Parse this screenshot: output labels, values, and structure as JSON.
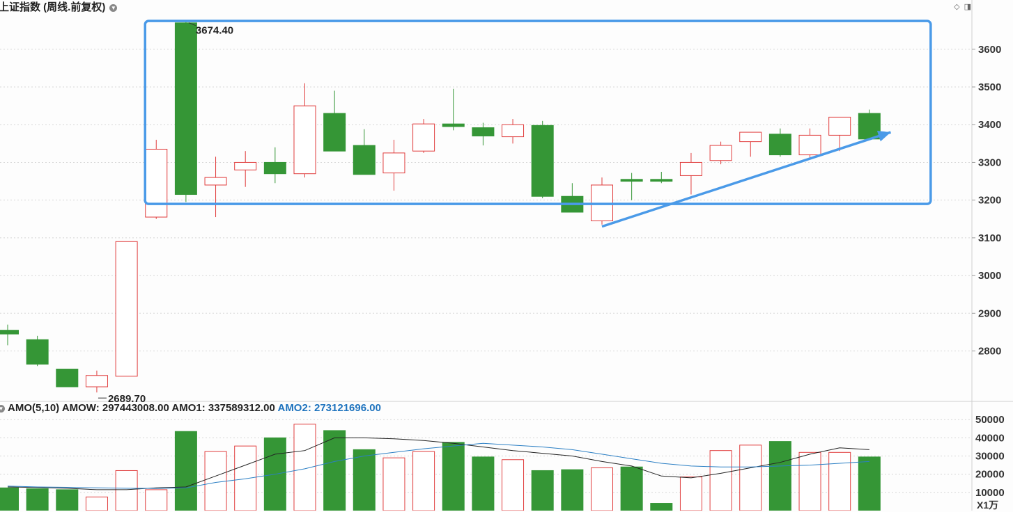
{
  "title": "上证指数 (周线.前复权)",
  "amo_header": {
    "label": "AMO(5,10)",
    "amow": "AMOW: 297443008.00",
    "amo1": "AMO1: 337589312.00",
    "amo2": "AMO2: 273121696.00"
  },
  "volume_unit": "X1万",
  "colors": {
    "up": "#e03c3c",
    "down": "#359636",
    "box": "#4a9ae8",
    "ma1": "#222222",
    "ma2": "#2b7fc4"
  },
  "chart_data": [
    {
      "type": "candlestick",
      "title": "上证指数 (周线.前复权)",
      "y_ticks": [
        2800,
        2900,
        3000,
        3100,
        3200,
        3300,
        3400,
        3500,
        3600
      ],
      "ylim": [
        2670,
        3690
      ],
      "high_label": "3674.40",
      "low_label": "2689.70",
      "candles": [
        {
          "o": 2855,
          "c": 2845,
          "h": 2870,
          "l": 2815
        },
        {
          "o": 2830,
          "c": 2765,
          "h": 2840,
          "l": 2760
        },
        {
          "o": 2752,
          "c": 2705,
          "h": 2752,
          "l": 2705
        },
        {
          "o": 2705,
          "c": 2735,
          "h": 2748,
          "l": 2690
        },
        {
          "o": 2733,
          "c": 3090,
          "h": 3090,
          "l": 2733
        },
        {
          "o": 3155,
          "c": 3335,
          "h": 3360,
          "l": 3150
        },
        {
          "o": 3670,
          "c": 3215,
          "h": 3674,
          "l": 3195
        },
        {
          "o": 3240,
          "c": 3260,
          "h": 3315,
          "l": 3155
        },
        {
          "o": 3280,
          "c": 3300,
          "h": 3330,
          "l": 3235
        },
        {
          "o": 3300,
          "c": 3270,
          "h": 3340,
          "l": 3245
        },
        {
          "o": 3270,
          "c": 3450,
          "h": 3510,
          "l": 3260
        },
        {
          "o": 3430,
          "c": 3330,
          "h": 3490,
          "l": 3330
        },
        {
          "o": 3345,
          "c": 3268,
          "h": 3388,
          "l": 3268
        },
        {
          "o": 3272,
          "c": 3325,
          "h": 3360,
          "l": 3225
        },
        {
          "o": 3330,
          "c": 3402,
          "h": 3415,
          "l": 3325
        },
        {
          "o": 3402,
          "c": 3395,
          "h": 3495,
          "l": 3385
        },
        {
          "o": 3392,
          "c": 3370,
          "h": 3405,
          "l": 3345
        },
        {
          "o": 3368,
          "c": 3400,
          "h": 3415,
          "l": 3350
        },
        {
          "o": 3398,
          "c": 3210,
          "h": 3410,
          "l": 3205
        },
        {
          "o": 3210,
          "c": 3168,
          "h": 3245,
          "l": 3168
        },
        {
          "o": 3145,
          "c": 3240,
          "h": 3260,
          "l": 3135
        },
        {
          "o": 3255,
          "c": 3250,
          "h": 3272,
          "l": 3200
        },
        {
          "o": 3255,
          "c": 3250,
          "h": 3275,
          "l": 3245
        },
        {
          "o": 3265,
          "c": 3300,
          "h": 3325,
          "l": 3215
        },
        {
          "o": 3305,
          "c": 3345,
          "h": 3355,
          "l": 3295
        },
        {
          "o": 3355,
          "c": 3380,
          "h": 3380,
          "l": 3315
        },
        {
          "o": 3375,
          "c": 3320,
          "h": 3390,
          "l": 3315
        },
        {
          "o": 3320,
          "c": 3372,
          "h": 3390,
          "l": 3310
        },
        {
          "o": 3372,
          "c": 3420,
          "h": 3420,
          "l": 3330
        },
        {
          "o": 3430,
          "c": 3362,
          "h": 3440,
          "l": 3360
        }
      ],
      "highlight_box": {
        "from_index": 5,
        "to_index": 29,
        "ymin": 3190,
        "ymax": 3675
      },
      "trend_arrow": {
        "from": {
          "index": 20,
          "y": 3130
        },
        "to": {
          "index": 30,
          "y": 3380
        }
      }
    },
    {
      "type": "bar",
      "title": "AMO(5,10)",
      "y_ticks": [
        10000,
        20000,
        30000,
        40000,
        50000
      ],
      "ylim": [
        0,
        52000
      ],
      "unit": "X1万",
      "values": [
        12500,
        12000,
        11500,
        7500,
        22000,
        11500,
        43500,
        32500,
        35500,
        40000,
        47500,
        44000,
        33500,
        29000,
        32500,
        37500,
        29500,
        28000,
        22000,
        22500,
        23500,
        24000,
        4000,
        18500,
        33000,
        36000,
        38000,
        32000,
        32000,
        29500
      ],
      "series": [
        {
          "name": "AMO1",
          "values": [
            13000,
            12700,
            12300,
            11500,
            11500,
            12500,
            13000,
            19000,
            25000,
            31000,
            33000,
            40000,
            40000,
            39500,
            38500,
            37000,
            35000,
            33000,
            31500,
            30000,
            27000,
            24500,
            19000,
            18000,
            20500,
            23500,
            26500,
            31000,
            34500,
            33500
          ]
        },
        {
          "name": "AMO2",
          "values": [
            13500,
            13000,
            12800,
            12500,
            12300,
            12200,
            12500,
            15500,
            17500,
            20000,
            23000,
            27000,
            30000,
            32000,
            34000,
            35500,
            37000,
            36000,
            35000,
            33500,
            31000,
            28500,
            26000,
            24500,
            24000,
            24000,
            24500,
            25000,
            26000,
            27000
          ]
        }
      ]
    }
  ]
}
